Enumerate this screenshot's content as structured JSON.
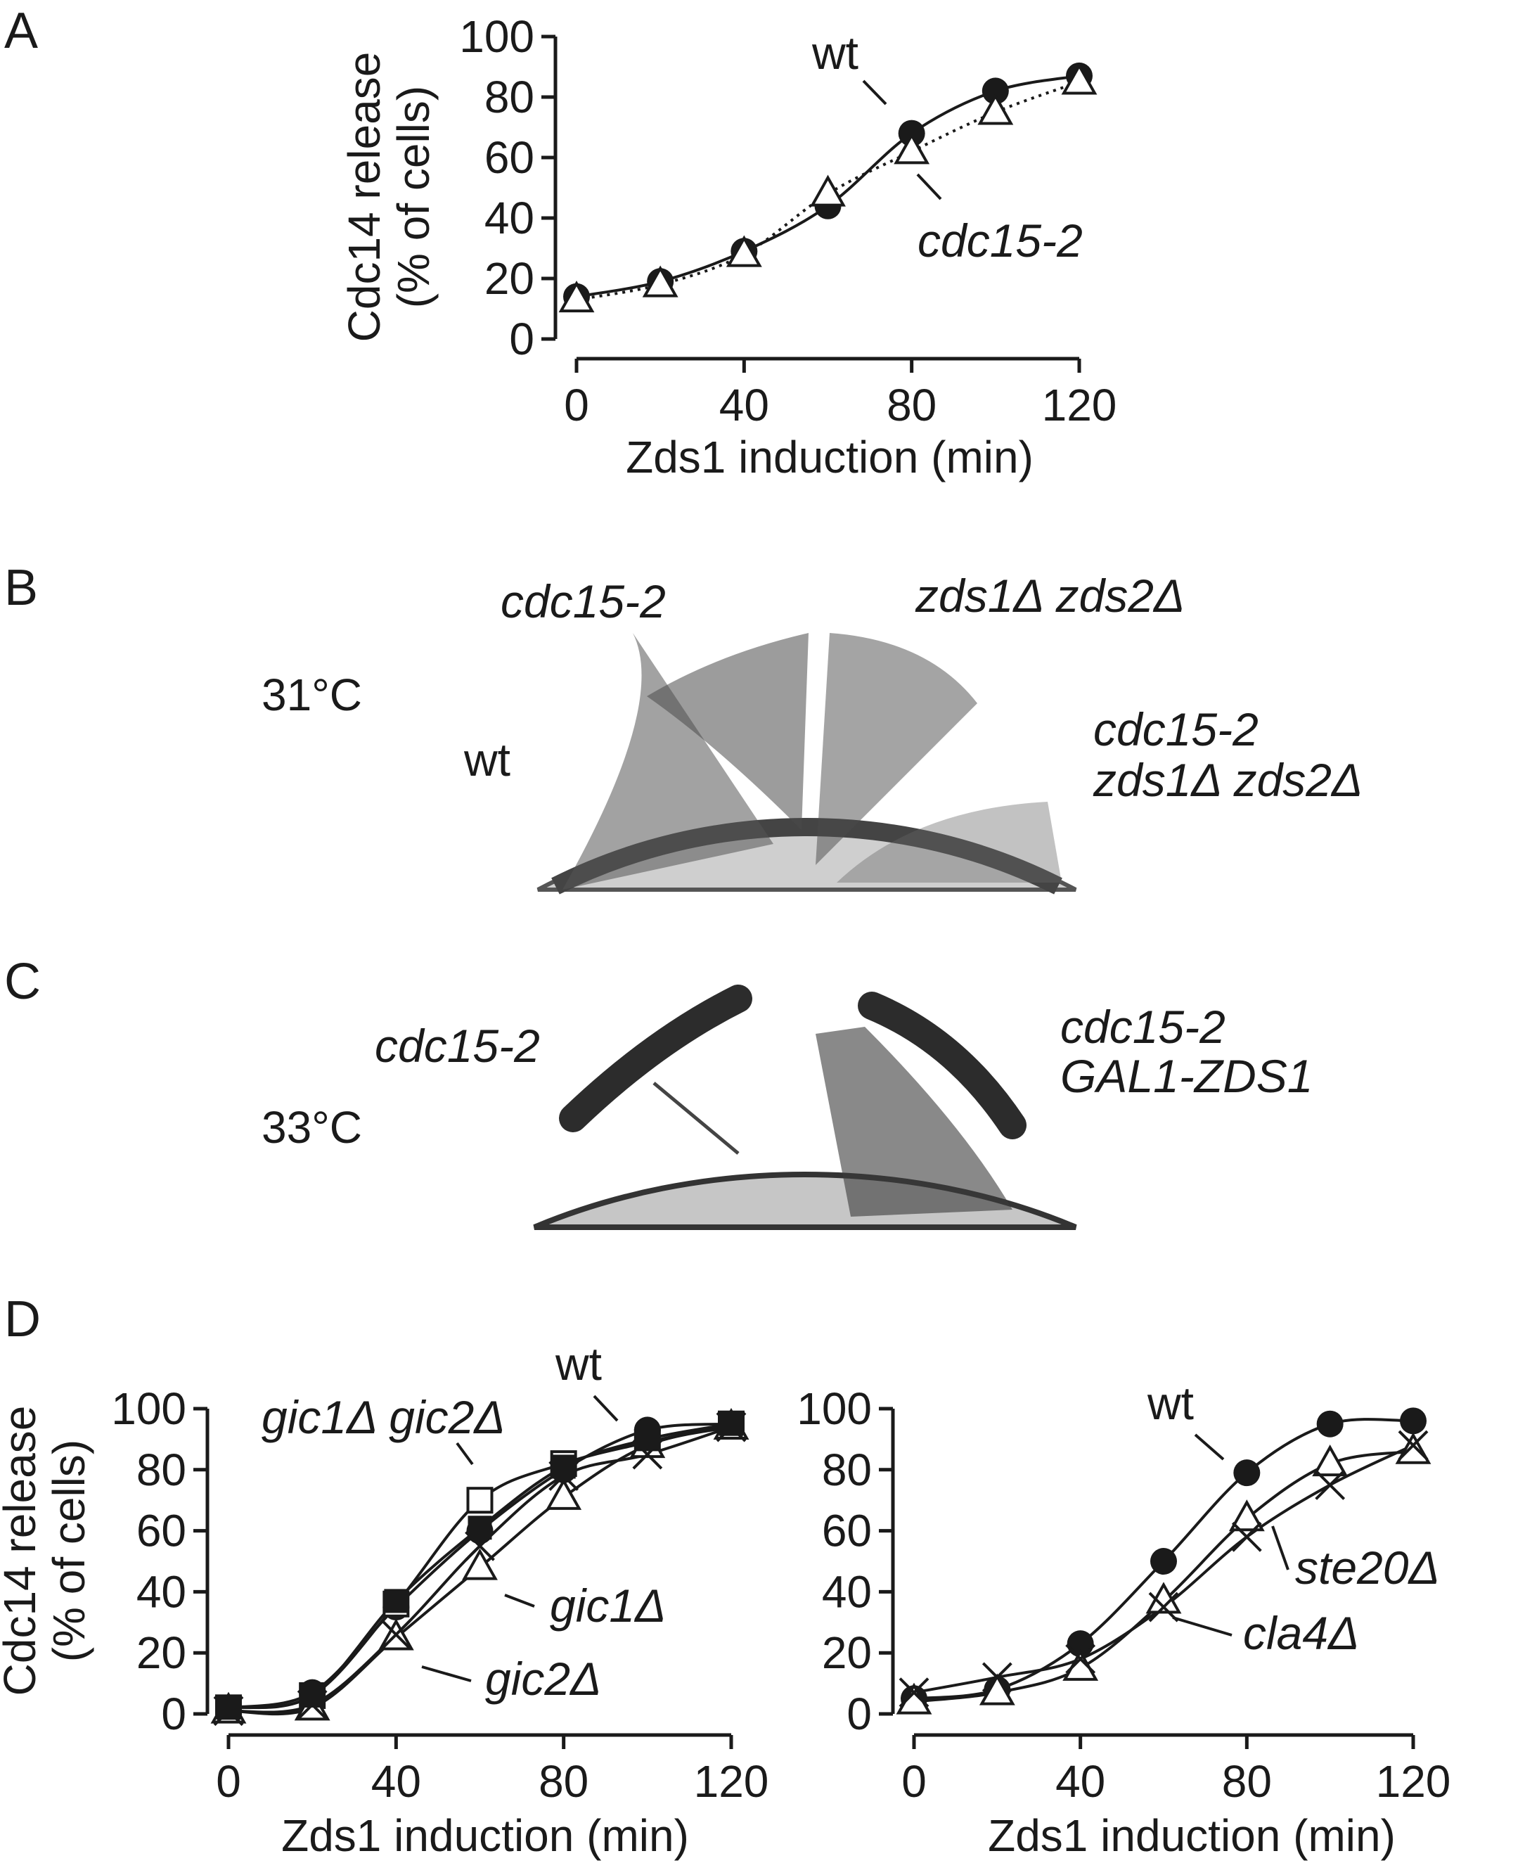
{
  "panels": {
    "A": {
      "letter": "A"
    },
    "B": {
      "letter": "B"
    },
    "C": {
      "letter": "C"
    },
    "D": {
      "letter": "D"
    }
  },
  "plates": {
    "B": {
      "temperature": "31°C",
      "labels": [
        "cdc15-2",
        "zds1Δ zds2Δ",
        "wt",
        "cdc15-2",
        "zds1Δ zds2Δ"
      ]
    },
    "C": {
      "temperature": "33°C",
      "labels": [
        "cdc15-2",
        "cdc15-2",
        "GAL1-ZDS1"
      ]
    }
  },
  "colors": {
    "ink": "#1a1a1a",
    "plate_bg": "#cfcfcf",
    "colony": "#333333"
  },
  "chart_data": [
    {
      "panel": "A",
      "type": "line",
      "xlabel": "Zds1 induction (min)",
      "ylabel_line1": "Cdc14 release",
      "ylabel_line2": "(% of cells)",
      "xlim": [
        0,
        120
      ],
      "ylim": [
        0,
        100
      ],
      "xticks": [
        0,
        40,
        80,
        120
      ],
      "yticks": [
        0,
        20,
        40,
        60,
        80,
        100
      ],
      "x": [
        0,
        20,
        40,
        60,
        80,
        100,
        120
      ],
      "series": [
        {
          "name": "wt",
          "marker": "filled-circle",
          "line": "solid",
          "values": [
            14,
            19,
            29,
            44,
            68,
            82,
            87
          ]
        },
        {
          "name": "cdc15-2",
          "marker": "open-triangle",
          "line": "dotted",
          "values": [
            13,
            18,
            28,
            48,
            62,
            75,
            85
          ]
        }
      ]
    },
    {
      "panel": "D-left",
      "type": "line",
      "xlabel": "Zds1 induction (min)",
      "ylabel_line1": "Cdc14 release",
      "ylabel_line2": "(% of cells)",
      "xlim": [
        0,
        120
      ],
      "ylim": [
        0,
        100
      ],
      "xticks": [
        0,
        40,
        80,
        120
      ],
      "yticks": [
        0,
        20,
        40,
        60,
        80,
        100
      ],
      "x": [
        0,
        20,
        40,
        60,
        80,
        100,
        120
      ],
      "series": [
        {
          "name": "wt",
          "marker": "filled-circle",
          "values": [
            2,
            7,
            35,
            60,
            80,
            93,
            95
          ]
        },
        {
          "name": "gic1Δ gic2Δ",
          "marker": "open-square",
          "values": [
            2,
            6,
            36,
            70,
            82,
            89,
            95
          ]
        },
        {
          "name": "gic1Δ",
          "marker": "open-triangle",
          "values": [
            1,
            2,
            25,
            48,
            71,
            88,
            94
          ]
        },
        {
          "name": "gic2Δ",
          "marker": "cross",
          "values": [
            1,
            3,
            26,
            55,
            78,
            85,
            94
          ]
        },
        {
          "name": "",
          "marker": "filled-square",
          "values": [
            2,
            6,
            37,
            61,
            81,
            90,
            95
          ]
        }
      ]
    },
    {
      "panel": "D-right",
      "type": "line",
      "xlabel": "Zds1 induction (min)",
      "xlim": [
        0,
        120
      ],
      "ylim": [
        0,
        100
      ],
      "xticks": [
        0,
        40,
        80,
        120
      ],
      "yticks": [
        0,
        20,
        40,
        60,
        80,
        100
      ],
      "x": [
        0,
        20,
        40,
        60,
        80,
        100,
        120
      ],
      "series": [
        {
          "name": "wt",
          "marker": "filled-circle",
          "values": [
            5,
            8,
            23,
            50,
            79,
            95,
            96
          ]
        },
        {
          "name": "ste20Δ",
          "marker": "open-triangle",
          "values": [
            4,
            7,
            15,
            37,
            64,
            82,
            86
          ]
        },
        {
          "name": "cla4Δ",
          "marker": "cross",
          "values": [
            7,
            12,
            18,
            35,
            58,
            75,
            88
          ]
        }
      ]
    }
  ]
}
